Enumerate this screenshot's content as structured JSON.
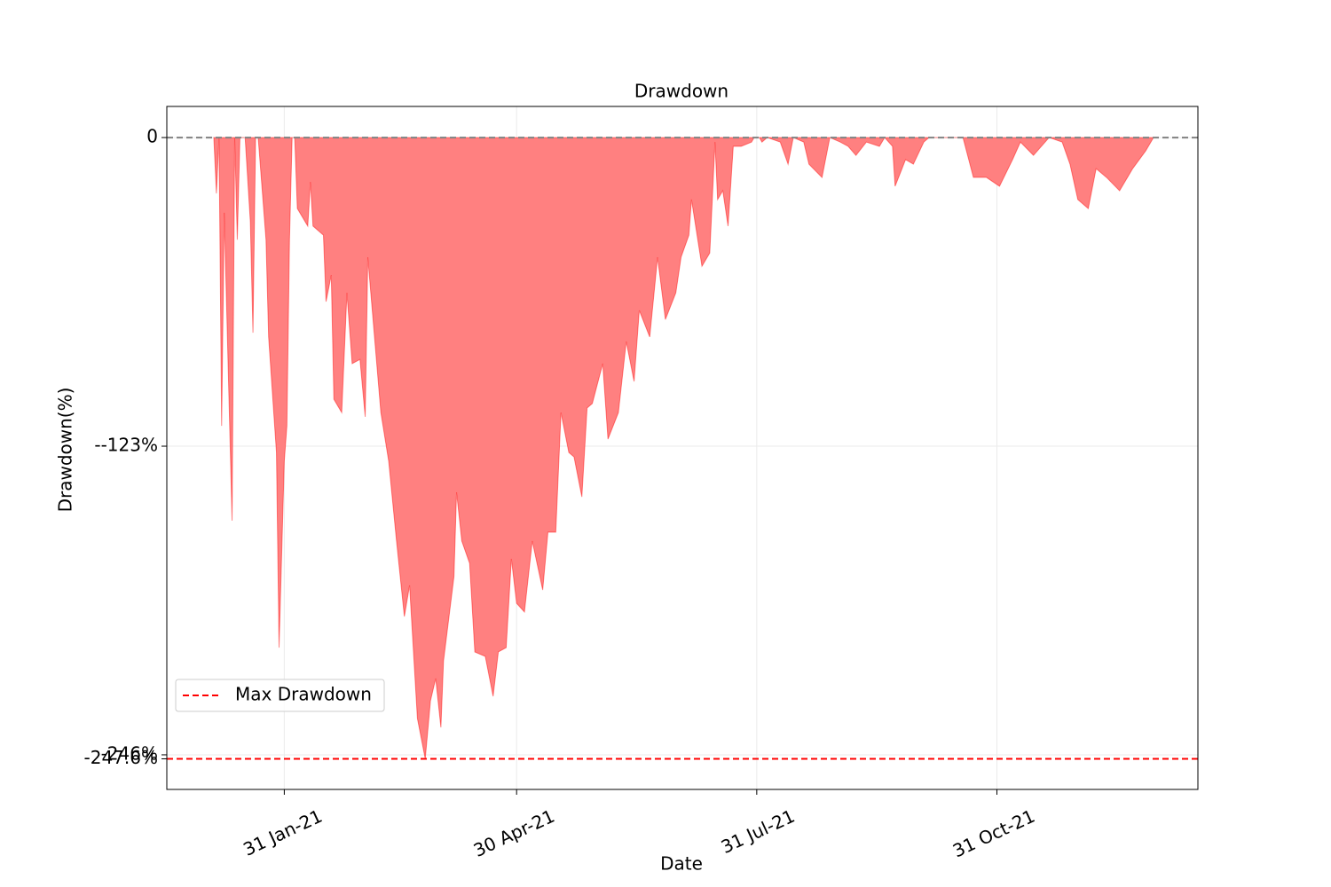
{
  "chart_data": {
    "type": "area",
    "title": "Drawdown",
    "x_label": "Date",
    "y_label": "Drawdown(%)",
    "x": [
      "2021-01-04",
      "2021-01-05",
      "2021-01-06",
      "2021-01-07",
      "2021-01-08",
      "2021-01-11",
      "2021-01-12",
      "2021-01-13",
      "2021-01-14",
      "2021-01-16",
      "2021-01-18",
      "2021-01-19",
      "2021-01-20",
      "2021-01-21",
      "2021-01-24",
      "2021-01-25",
      "2021-01-28",
      "2021-01-29",
      "2021-01-31",
      "2021-02-01",
      "2021-02-02",
      "2021-02-03",
      "2021-02-04",
      "2021-02-05",
      "2021-02-09",
      "2021-02-10",
      "2021-02-11",
      "2021-02-15",
      "2021-02-16",
      "2021-02-18",
      "2021-02-19",
      "2021-02-22",
      "2021-02-24",
      "2021-02-26",
      "2021-03-01",
      "2021-03-03",
      "2021-03-04",
      "2021-03-09",
      "2021-03-12",
      "2021-03-15",
      "2021-03-18",
      "2021-03-20",
      "2021-03-23",
      "2021-03-26",
      "2021-03-28",
      "2021-03-30",
      "2021-04-01",
      "2021-04-02",
      "2021-04-06",
      "2021-04-07",
      "2021-04-09",
      "2021-04-12",
      "2021-04-14",
      "2021-04-18",
      "2021-04-19",
      "2021-04-21",
      "2021-04-23",
      "2021-04-26",
      "2021-04-28",
      "2021-04-30",
      "2021-05-03",
      "2021-05-06",
      "2021-05-10",
      "2021-05-12",
      "2021-05-15",
      "2021-05-17",
      "2021-05-20",
      "2021-05-22",
      "2021-05-25",
      "2021-05-27",
      "2021-05-29",
      "2021-06-02",
      "2021-06-04",
      "2021-06-08",
      "2021-06-11",
      "2021-06-14",
      "2021-06-16",
      "2021-06-20",
      "2021-06-23",
      "2021-06-26",
      "2021-06-30",
      "2021-07-02",
      "2021-07-05",
      "2021-07-06",
      "2021-07-10",
      "2021-07-13",
      "2021-07-15",
      "2021-07-16",
      "2021-07-18",
      "2021-07-20",
      "2021-07-22",
      "2021-07-25",
      "2021-07-29",
      "2021-07-30",
      "2021-08-01",
      "2021-08-02",
      "2021-08-04",
      "2021-08-09",
      "2021-08-12",
      "2021-08-14",
      "2021-08-18",
      "2021-08-20",
      "2021-08-25",
      "2021-08-28",
      "2021-09-01",
      "2021-09-04",
      "2021-09-07",
      "2021-09-11",
      "2021-09-16",
      "2021-09-18",
      "2021-09-21",
      "2021-09-22",
      "2021-09-26",
      "2021-09-29",
      "2021-10-03",
      "2021-10-05",
      "2021-10-18",
      "2021-10-22",
      "2021-10-27",
      "2021-11-01",
      "2021-11-06",
      "2021-11-09",
      "2021-11-14",
      "2021-11-20",
      "2021-11-25",
      "2021-11-28",
      "2021-12-01",
      "2021-12-05",
      "2021-12-08",
      "2021-12-12",
      "2021-12-17",
      "2021-12-22",
      "2021-12-27",
      "2021-12-30"
    ],
    "series": [
      {
        "color": "#ff0000",
        "fill": "#ff8080",
        "values": [
          0,
          -22.3,
          0,
          -114.9,
          -30.0,
          -152.7,
          0,
          -40.7,
          0,
          0,
          -33.6,
          -77.8,
          0,
          0,
          -40.7,
          -79.5,
          -125.5,
          -203.3,
          -129.0,
          -114.9,
          -40.7,
          0,
          0,
          -28.3,
          -35.3,
          -17.7,
          -35.3,
          -38.9,
          -65.4,
          -54.8,
          -104.3,
          -109.6,
          -61.9,
          -90.1,
          -88.4,
          -111.3,
          -47.7,
          -109.6,
          -129.0,
          -160.8,
          -190.9,
          -178.5,
          -231.5,
          -247.6,
          -224.5,
          -215.6,
          -235.1,
          -208.6,
          -175.0,
          -141.4,
          -160.8,
          -169.7,
          -205.0,
          -206.8,
          -212.1,
          -222.7,
          -205.0,
          -203.3,
          -167.9,
          -185.6,
          -189.1,
          -160.8,
          -180.3,
          -157.3,
          -157.3,
          -109.6,
          -125.5,
          -127.3,
          -143.2,
          -107.8,
          -106.0,
          -90.1,
          -120.2,
          -109.6,
          -81.3,
          -97.2,
          -68.9,
          -79.5,
          -47.7,
          -72.5,
          -61.9,
          -47.7,
          -38.9,
          -24.7,
          -51.3,
          -46.0,
          -1.8,
          -24.7,
          -21.2,
          -35.3,
          -3.5,
          -3.5,
          -1.8,
          0,
          0,
          -1.8,
          0,
          -1.8,
          -10.6,
          0,
          -1.8,
          -10.6,
          -15.9,
          0,
          -1.8,
          -3.5,
          -7.1,
          -1.8,
          -3.5,
          0,
          -3.5,
          -19.4,
          -8.8,
          -10.6,
          -1.8,
          0,
          0,
          -15.9,
          -15.9,
          -19.4,
          -8.8,
          -1.8,
          -7.1,
          0,
          -1.8,
          -10.6,
          -24.7,
          -28.3,
          -12.4,
          -15.9,
          -21.2,
          -12.4,
          -5.3,
          0
        ]
      }
    ],
    "max_drawdown": {
      "name": "Max Drawdown",
      "value": -247.6,
      "label": "-247.6%",
      "color": "#ff0000"
    },
    "xlim": [
      "2020-12-17",
      "2022-01-16"
    ],
    "xticks": [
      {
        "value": "2021-01-31",
        "label": "31 Jan-21"
      },
      {
        "value": "2021-04-30",
        "label": "30 Apr-21"
      },
      {
        "value": "2021-07-31",
        "label": "31 Jul-21"
      },
      {
        "value": "2021-10-31",
        "label": "31 Oct-21"
      }
    ],
    "ylim": [
      -259.8,
      12.4
    ],
    "yticks": [
      0,
      {
        "value": -123,
        "label": "--123%"
      },
      {
        "value": -246,
        "label": "-246%"
      }
    ],
    "grid": true,
    "legend": "lower left"
  }
}
